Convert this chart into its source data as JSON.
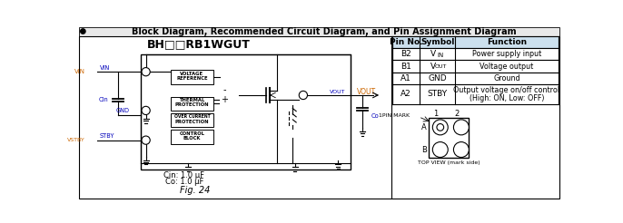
{
  "title": "Block Diagram, Recommended Circuit Diagram, and Pin Assignment Diagram",
  "chip_title": "BH□□RB1WGUT",
  "fig_label": "Fig. 24",
  "cin_label": "Cin: 1.0 μF",
  "co_label": "Co: 1.0 μF",
  "table_headers": [
    "Pin No.",
    "Symbol",
    "Function"
  ],
  "table_rows": [
    [
      "B2",
      "VIN",
      "Power supply input"
    ],
    [
      "B1",
      "VOUT",
      "Voltage output"
    ],
    [
      "A1",
      "GND",
      "Ground"
    ],
    [
      "A2",
      "STBY",
      "Output voltage on/off control\n(High: ON, Low: OFF)"
    ]
  ],
  "table_symbols": [
    "VIN",
    "VOUT",
    "GND",
    "STBY"
  ],
  "background_color": "#ffffff",
  "header_bg": "#cce0ee",
  "blue_color": "#0000bb",
  "orange_color": "#cc6600"
}
